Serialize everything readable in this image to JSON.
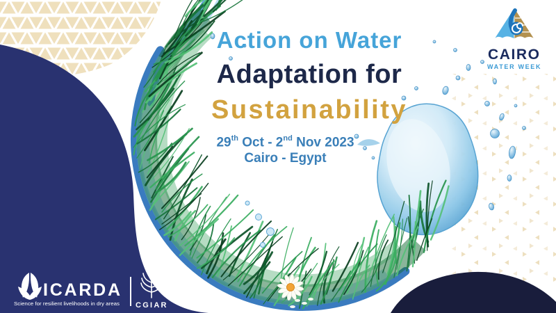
{
  "event": {
    "title_line1": "Action on Water",
    "title_line2": "Adaptation for",
    "title_line3": "Sustainability",
    "date_parts": {
      "p1": "29",
      "s1": "th",
      "p2": " Oct - 2",
      "s2": "nd",
      "p3": " Nov 2023"
    },
    "location": "Cairo - Egypt"
  },
  "cairo_water_week_logo": {
    "line1": "CAIRO",
    "line2": "WATER WEEK",
    "icon": "pyramid-water-wave-icon"
  },
  "icarda_logo": {
    "name": "ICARDA",
    "tagline": "Science for resilient livelihoods in dry areas",
    "icon": "plant-leaf-icon"
  },
  "cgiar_logo": {
    "name": "CGIAR",
    "icon": "wheat-stalk-icon"
  },
  "artwork": {
    "ring": "grass-and-water-circle-illustration",
    "splash": "water-splash",
    "flower": "daisy-flower",
    "patterns": "tan-triangle-mesh"
  },
  "colors": {
    "title_blue": "#46a4d9",
    "title_navy": "#1d2849",
    "title_gold": "#d2a23f",
    "date_blue": "#3a7fb8",
    "navy_left": "#293270",
    "navy_dark": "#191d3c",
    "pattern_tan": "#efe0bd",
    "rim_blue": "#2f74bc",
    "splash_blue": "#5fa8d6",
    "cairo_navy": "#1b2b5e",
    "cairo_blue": "#3a9ad4",
    "cairo_tan": "#b3914f"
  }
}
